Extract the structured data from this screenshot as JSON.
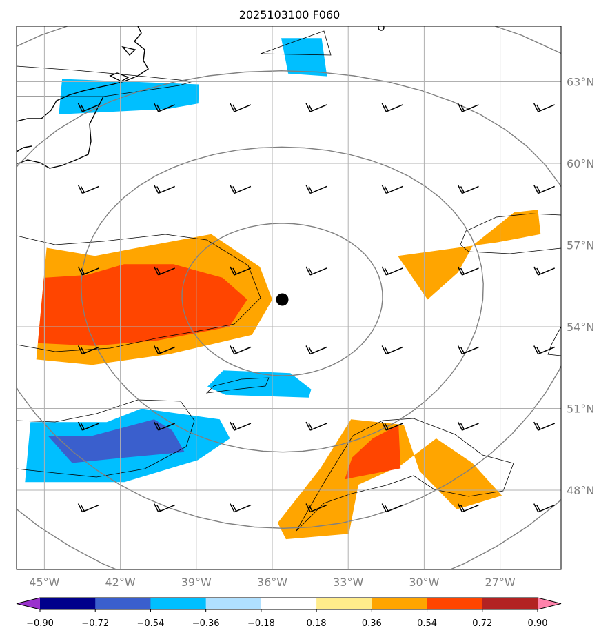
{
  "chart_data": {
    "type": "heatmap",
    "title": "2025103100 F060",
    "x_axis": {
      "range": [
        -45.2,
        -25.0
      ],
      "tick_values": [
        -45,
        -42,
        -39,
        -36,
        -33,
        -30,
        -27
      ],
      "tick_labels": [
        "45°W",
        "42°W",
        "39°W",
        "36°W",
        "33°W",
        "30°W",
        "27°W"
      ]
    },
    "y_axis": {
      "range": [
        45.2,
        64.6
      ],
      "tick_values": [
        48,
        51,
        54,
        57,
        60,
        63
      ],
      "tick_labels": [
        "48°N",
        "51°N",
        "54°N",
        "57°N",
        "60°N",
        "63°N"
      ]
    },
    "colorbar": {
      "boundaries": [
        -0.9,
        -0.72,
        -0.54,
        -0.36,
        -0.18,
        0.18,
        0.36,
        0.54,
        0.72,
        0.9
      ],
      "tick_labels": [
        "−0.90",
        "−0.72",
        "−0.54",
        "−0.36",
        "−0.18",
        "0.18",
        "0.36",
        "0.54",
        "0.72",
        "0.90"
      ],
      "colors": [
        "#9a32cd",
        "#00008b",
        "#3a5fcd",
        "#00bfff",
        "#b0e0ff",
        "#ffffff",
        "#ffec8b",
        "#ffa500",
        "#ff4500",
        "#b22222",
        "#ff82ab"
      ]
    },
    "center_marker": {
      "lon": -35.6,
      "lat": 55.0
    },
    "grid": true,
    "distance_rings_deg": [
      2.8,
      5.6,
      8.4,
      11.2
    ],
    "filled_regions": [
      {
        "level": 0.36,
        "points": [
          [
            -45.2,
            56.9
          ],
          [
            -43.2,
            56.6
          ],
          [
            -41.5,
            56.9
          ],
          [
            -38.5,
            57.4
          ],
          [
            -36.5,
            56.2
          ],
          [
            -36.0,
            55.0
          ],
          [
            -36.8,
            53.7
          ],
          [
            -40,
            53.0
          ],
          [
            -43,
            52.6
          ],
          [
            -45.2,
            52.8
          ]
        ]
      },
      {
        "level": 0.54,
        "points": [
          [
            -45.2,
            55.8
          ],
          [
            -43.5,
            55.9
          ],
          [
            -42.0,
            56.3
          ],
          [
            -40.0,
            56.3
          ],
          [
            -38.0,
            55.8
          ],
          [
            -37.0,
            55.0
          ],
          [
            -37.7,
            54.0
          ],
          [
            -40.5,
            53.5
          ],
          [
            -43.0,
            53.3
          ],
          [
            -45.2,
            53.4
          ]
        ]
      },
      {
        "level": 0.36,
        "points": [
          [
            -26.8,
            57.1
          ],
          [
            -25.0,
            57.4
          ],
          [
            -25.0,
            58.3
          ],
          [
            -26.0,
            58.2
          ],
          [
            -27.8,
            57.0
          ],
          [
            -28.5,
            56.0
          ],
          [
            -29.8,
            55.0
          ],
          [
            -30.9,
            56.6
          ]
        ]
      },
      {
        "level": 0.36,
        "points": [
          [
            -35.8,
            46.8
          ],
          [
            -35.5,
            46.2
          ],
          [
            -33.2,
            46.4
          ],
          [
            -32.8,
            48.2
          ],
          [
            -31.2,
            48.9
          ],
          [
            -29.8,
            49.9
          ],
          [
            -28.5,
            49.0
          ],
          [
            -27.5,
            47.8
          ],
          [
            -29.2,
            47.3
          ],
          [
            -30.5,
            48.7
          ],
          [
            -31.0,
            50.4
          ],
          [
            -33.0,
            50.6
          ],
          [
            -34.2,
            48.8
          ]
        ]
      },
      {
        "level": 0.54,
        "points": [
          [
            -33.3,
            48.4
          ],
          [
            -31.2,
            48.8
          ],
          [
            -31.2,
            50.4
          ],
          [
            -32.2,
            49.9
          ],
          [
            -33.0,
            49.2
          ]
        ]
      },
      {
        "level": -0.36,
        "points": [
          [
            -45.2,
            50.5
          ],
          [
            -42.3,
            50.5
          ],
          [
            -41.0,
            51.0
          ],
          [
            -38.0,
            50.6
          ],
          [
            -37.6,
            49.9
          ],
          [
            -38.8,
            49.1
          ],
          [
            -41.5,
            48.3
          ],
          [
            -45.2,
            48.3
          ]
        ]
      },
      {
        "level": -0.54,
        "points": [
          [
            -44.5,
            50.0
          ],
          [
            -42.8,
            50.0
          ],
          [
            -40.5,
            50.6
          ],
          [
            -39.8,
            50.2
          ],
          [
            -39.3,
            49.4
          ],
          [
            -41.5,
            49.2
          ],
          [
            -43.5,
            49.0
          ]
        ]
      },
      {
        "level": -0.36,
        "points": [
          [
            -37.9,
            52.4
          ],
          [
            -35.3,
            52.3
          ],
          [
            -34.5,
            51.7
          ],
          [
            -34.6,
            51.4
          ],
          [
            -37.8,
            51.5
          ],
          [
            -38.5,
            51.8
          ]
        ]
      },
      {
        "level": -0.36,
        "points": [
          [
            -45.2,
            63.1
          ],
          [
            -39.2,
            62.9
          ],
          [
            -39.2,
            62.2
          ],
          [
            -40.5,
            62.0
          ],
          [
            -45.2,
            61.8
          ]
        ]
      },
      {
        "level": -0.36,
        "points": [
          [
            -35.6,
            64.6
          ],
          [
            -33.8,
            64.6
          ],
          [
            -33.6,
            63.2
          ],
          [
            -35.3,
            63.3
          ]
        ]
      }
    ],
    "wind_barbs": [
      {
        "lon": -43.5,
        "lat": 47.2
      },
      {
        "lon": -40.5,
        "lat": 47.2
      },
      {
        "lon": -37.5,
        "lat": 47.2
      },
      {
        "lon": -34.5,
        "lat": 47.2
      },
      {
        "lon": -31.5,
        "lat": 47.2
      },
      {
        "lon": -28.5,
        "lat": 47.2
      },
      {
        "lon": -25.5,
        "lat": 47.2
      },
      {
        "lon": -43.5,
        "lat": 50.2
      },
      {
        "lon": -40.5,
        "lat": 50.2
      },
      {
        "lon": -37.5,
        "lat": 50.2
      },
      {
        "lon": -34.5,
        "lat": 50.2
      },
      {
        "lon": -31.5,
        "lat": 50.2
      },
      {
        "lon": -28.5,
        "lat": 50.2
      },
      {
        "lon": -25.5,
        "lat": 50.2
      },
      {
        "lon": -43.5,
        "lat": 53.0
      },
      {
        "lon": -40.5,
        "lat": 53.0
      },
      {
        "lon": -37.5,
        "lat": 53.0
      },
      {
        "lon": -34.5,
        "lat": 53.0
      },
      {
        "lon": -31.5,
        "lat": 53.0
      },
      {
        "lon": -28.5,
        "lat": 53.0
      },
      {
        "lon": -25.5,
        "lat": 53.0
      },
      {
        "lon": -43.5,
        "lat": 55.9
      },
      {
        "lon": -40.5,
        "lat": 55.9
      },
      {
        "lon": -37.5,
        "lat": 55.9
      },
      {
        "lon": -34.5,
        "lat": 55.9
      },
      {
        "lon": -31.5,
        "lat": 55.9
      },
      {
        "lon": -28.5,
        "lat": 55.9
      },
      {
        "lon": -25.5,
        "lat": 55.9
      },
      {
        "lon": -43.5,
        "lat": 58.9
      },
      {
        "lon": -40.5,
        "lat": 58.9
      },
      {
        "lon": -37.5,
        "lat": 58.9
      },
      {
        "lon": -34.5,
        "lat": 58.9
      },
      {
        "lon": -31.5,
        "lat": 58.9
      },
      {
        "lon": -28.5,
        "lat": 58.9
      },
      {
        "lon": -25.5,
        "lat": 58.9
      },
      {
        "lon": -43.5,
        "lat": 61.9
      },
      {
        "lon": -40.5,
        "lat": 61.9
      },
      {
        "lon": -37.5,
        "lat": 61.9
      },
      {
        "lon": -34.5,
        "lat": 61.9
      },
      {
        "lon": -31.5,
        "lat": 61.9
      },
      {
        "lon": -28.5,
        "lat": 61.9
      },
      {
        "lon": -25.5,
        "lat": 61.9
      }
    ]
  }
}
